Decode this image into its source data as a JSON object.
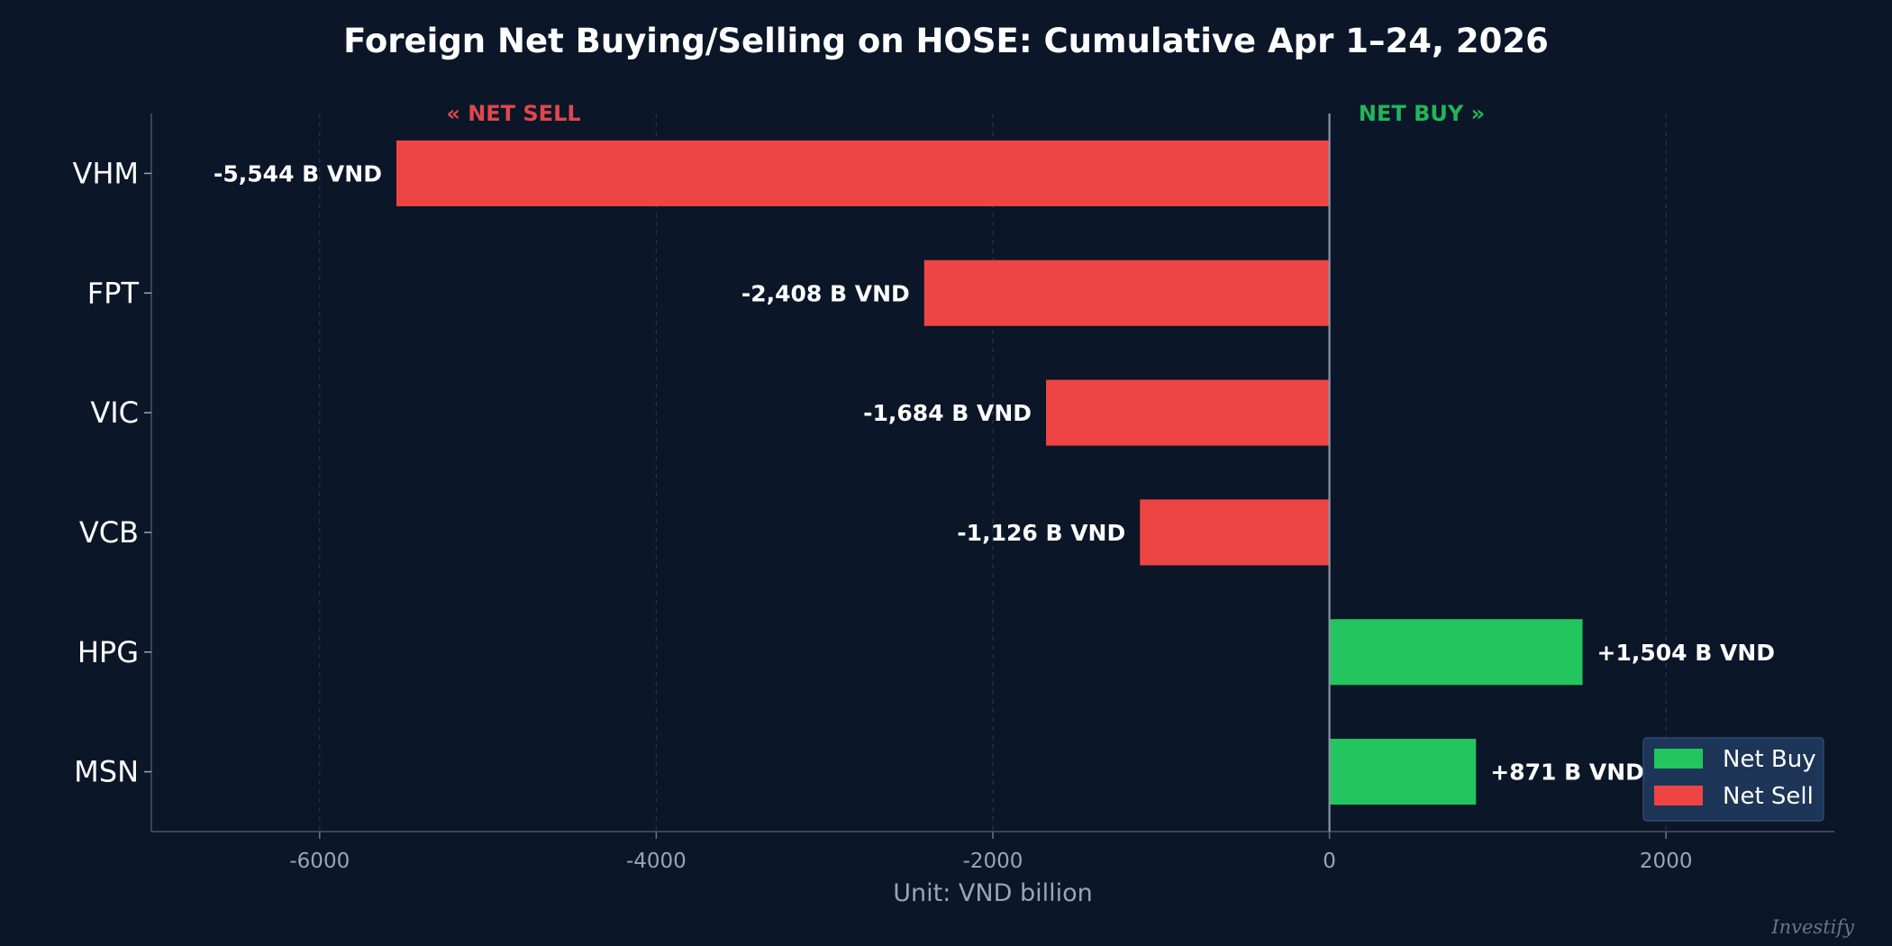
{
  "chart_data": {
    "type": "bar",
    "orientation": "horizontal",
    "title": "Foreign Net Buying/Selling on HOSE: Cumulative Apr 1–24, 2026",
    "xlabel": "Unit: VND billion",
    "ylabel": "",
    "xlim": [
      -7000,
      3000
    ],
    "xticks": [
      -6000,
      -4000,
      -2000,
      0,
      2000
    ],
    "xtick_labels": [
      "-6000",
      "-4000",
      "-2000",
      "0",
      "2000"
    ],
    "categories": [
      "VHM",
      "FPT",
      "VIC",
      "VCB",
      "HPG",
      "MSN"
    ],
    "values": [
      -5544,
      -2408,
      -1684,
      -1126,
      1504,
      871
    ],
    "data_labels": [
      "-5,544 B VND",
      "-2,408 B VND",
      "-1,684 B VND",
      "-1,126 B VND",
      "+1,504 B VND",
      "+871 B VND"
    ],
    "grid": "vertical dashed",
    "zero_line": true,
    "annotations": {
      "net_sell": "« NET SELL",
      "net_buy": "NET BUY »"
    },
    "legend": {
      "placement": "bottom-right",
      "entries": [
        {
          "label": "Net Buy",
          "color": "#22c55e"
        },
        {
          "label": "Net Sell",
          "color": "#ef4444"
        }
      ]
    },
    "colors": {
      "positive": "#22c55e",
      "negative": "#ef4444",
      "background": "#0b1628",
      "sell_annotation": "#e0474c",
      "buy_annotation": "#22b55a"
    }
  },
  "watermark": "Investify"
}
